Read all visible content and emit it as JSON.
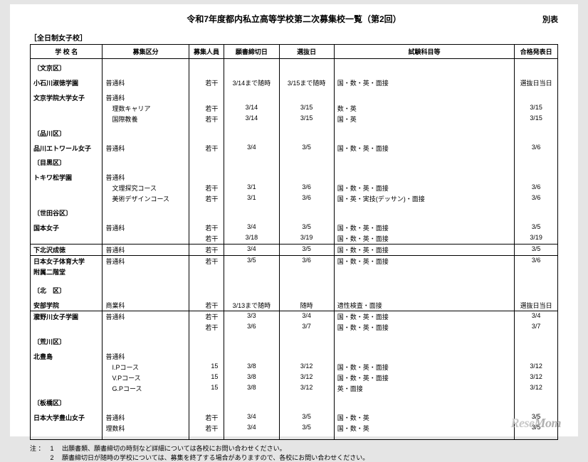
{
  "title": "令和7年度都内私立高等学校第二次募集校一覧（第2回）",
  "side_label": "別表",
  "category": "［全日制女子校］",
  "headers": [
    "学 校 名",
    "募集区分",
    "募集人員",
    "願書締切日",
    "選抜日",
    "試験科目等",
    "合格発表日"
  ],
  "body": [
    {
      "t": "ward",
      "name": "〔文京区〕"
    },
    {
      "t": "gap"
    },
    {
      "t": "row",
      "name": "小石川淑徳学園",
      "div": "普通科",
      "cap": "若干",
      "due": "3/14まで随時",
      "sel": "3/15まで随時",
      "sub": "国・数・英・面接",
      "res": "選抜日当日"
    },
    {
      "t": "gap"
    },
    {
      "t": "row",
      "name": "文京学院大学女子",
      "div": "普通科",
      "cap": "",
      "due": "",
      "sel": "",
      "sub": "",
      "res": ""
    },
    {
      "t": "row",
      "name": "",
      "div": "　理数キャリア",
      "cap": "若干",
      "due": "3/14",
      "sel": "3/15",
      "sub": "数・英",
      "res": "3/15"
    },
    {
      "t": "row",
      "name": "",
      "div": "　国際教養",
      "cap": "若干",
      "due": "3/14",
      "sel": "3/15",
      "sub": "国・英",
      "res": "3/15"
    },
    {
      "t": "ward",
      "name": "〔品川区〕"
    },
    {
      "t": "gap"
    },
    {
      "t": "row",
      "name": "品川エトワール女子",
      "div": "普通科",
      "cap": "若干",
      "due": "3/4",
      "sel": "3/5",
      "sub": "国・数・英・面接",
      "res": "3/6"
    },
    {
      "t": "ward",
      "name": "〔目黒区〕"
    },
    {
      "t": "gap"
    },
    {
      "t": "row",
      "name": "トキワ松学園",
      "div": "普通科",
      "cap": "",
      "due": "",
      "sel": "",
      "sub": "",
      "res": ""
    },
    {
      "t": "row",
      "name": "",
      "div": "　文理探究コース",
      "cap": "若干",
      "due": "3/1",
      "sel": "3/6",
      "sub": "国・数・英・面接",
      "res": "3/6"
    },
    {
      "t": "row",
      "name": "",
      "div": "　美術デザインコース",
      "cap": "若干",
      "due": "3/1",
      "sel": "3/6",
      "sub": "国・英・実技(デッサン)・面接",
      "res": "3/6"
    },
    {
      "t": "ward",
      "name": "〔世田谷区〕"
    },
    {
      "t": "gap"
    },
    {
      "t": "row",
      "name": "国本女子",
      "div": "普通科",
      "cap": "若干",
      "due": "3/4",
      "sel": "3/5",
      "sub": "国・数・英・面接",
      "res": "3/5"
    },
    {
      "t": "row",
      "name": "",
      "div": "",
      "cap": "若干",
      "due": "3/18",
      "sel": "3/19",
      "sub": "国・数・英・面接",
      "res": "3/19"
    },
    {
      "t": "sep"
    },
    {
      "t": "row",
      "name": "下北沢成徳",
      "div": "普通科",
      "cap": "若干",
      "due": "3/4",
      "sel": "3/5",
      "sub": "国・数・英・面接",
      "res": "3/5"
    },
    {
      "t": "sep"
    },
    {
      "t": "row",
      "name": "日本女子体育大学",
      "div": "普通科",
      "cap": "若干",
      "due": "3/5",
      "sel": "3/6",
      "sub": "国・数・英・面接",
      "res": "3/6"
    },
    {
      "t": "row",
      "name": "附属二階堂",
      "div": "",
      "cap": "",
      "due": "",
      "sel": "",
      "sub": "",
      "res": ""
    },
    {
      "t": "gap"
    },
    {
      "t": "ward",
      "name": "〔北　区〕"
    },
    {
      "t": "gap"
    },
    {
      "t": "row",
      "name": "安部学院",
      "div": "商業科",
      "cap": "若干",
      "due": "3/13まで随時",
      "sel": "随時",
      "sub": "適性検査・面接",
      "res": "選抜日当日"
    },
    {
      "t": "sep"
    },
    {
      "t": "row",
      "name": "瀧野川女子学園",
      "div": "普通科",
      "cap": "若干",
      "due": "3/3",
      "sel": "3/4",
      "sub": "国・数・英・面接",
      "res": "3/4"
    },
    {
      "t": "row",
      "name": "",
      "div": "",
      "cap": "若干",
      "due": "3/6",
      "sel": "3/7",
      "sub": "国・数・英・面接",
      "res": "3/7"
    },
    {
      "t": "ward",
      "name": "〔荒川区〕"
    },
    {
      "t": "gap"
    },
    {
      "t": "row",
      "name": "北豊島",
      "div": "普通科",
      "cap": "",
      "due": "",
      "sel": "",
      "sub": "",
      "res": ""
    },
    {
      "t": "row",
      "name": "",
      "div": "　I.Pコース",
      "cap": "15",
      "due": "3/8",
      "sel": "3/12",
      "sub": "国・数・英・面接",
      "res": "3/12"
    },
    {
      "t": "row",
      "name": "",
      "div": "　V.Pコース",
      "cap": "15",
      "due": "3/8",
      "sel": "3/12",
      "sub": "国・数・英・面接",
      "res": "3/12"
    },
    {
      "t": "row",
      "name": "",
      "div": "　G.Pコース",
      "cap": "15",
      "due": "3/8",
      "sel": "3/12",
      "sub": "英・面接",
      "res": "3/12"
    },
    {
      "t": "ward",
      "name": "〔板橋区〕"
    },
    {
      "t": "gap"
    },
    {
      "t": "row",
      "name": "日本大学豊山女子",
      "div": "普通科",
      "cap": "若干",
      "due": "3/4",
      "sel": "3/5",
      "sub": "国・数・英",
      "res": "3/5"
    },
    {
      "t": "row",
      "name": "",
      "div": "理数科",
      "cap": "若干",
      "due": "3/4",
      "sel": "3/5",
      "sub": "国・数・英",
      "res": "3/5"
    },
    {
      "t": "gap"
    },
    {
      "t": "last"
    }
  ],
  "notes_label": "注 ：",
  "notes": [
    "出願書類、願書締切の時刻など詳細については各校にお問い合わせください。",
    "願書締切日が随時の学校については、募集を終了する場合がありますので、各校にお問い合わせください。"
  ],
  "logo": "ReseMom"
}
